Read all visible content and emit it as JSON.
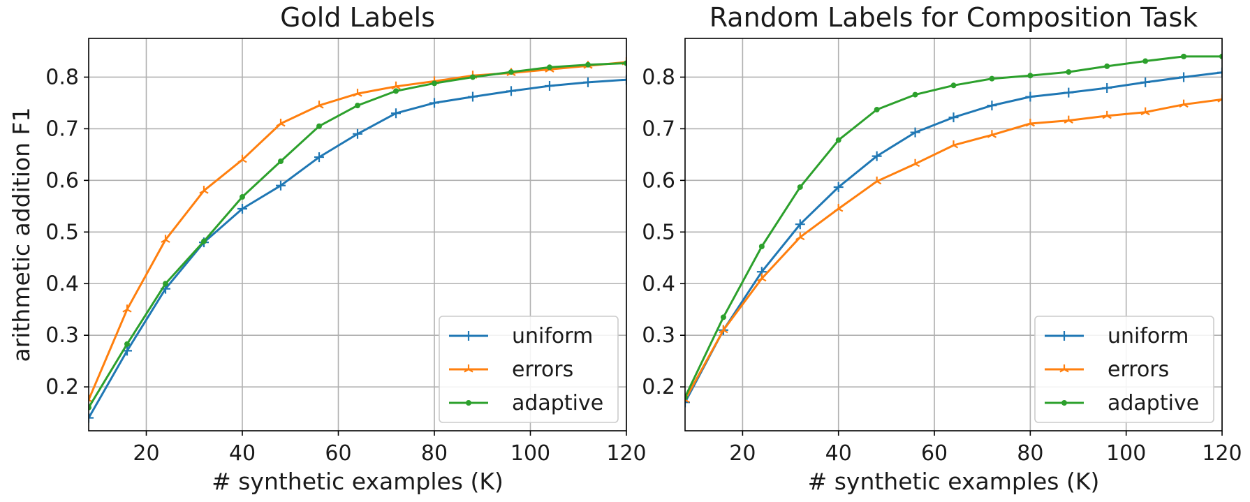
{
  "chart_data": [
    {
      "type": "line",
      "title": "Gold Labels",
      "xlabel": "# synthetic examples (K)",
      "ylabel": "arithmetic addition F1",
      "xlim": [
        8,
        120
      ],
      "ylim": [
        0.115,
        0.875
      ],
      "xticks": [
        20,
        40,
        60,
        80,
        100,
        120
      ],
      "yticks": [
        0.2,
        0.3,
        0.4,
        0.5,
        0.6,
        0.7,
        0.8
      ],
      "grid": true,
      "legend": "lower-right",
      "x": [
        8,
        16,
        24,
        32,
        40,
        48,
        56,
        64,
        72,
        80,
        88,
        96,
        104,
        112,
        120
      ],
      "series": [
        {
          "name": "uniform",
          "color": "#1f77b4",
          "marker": "plus",
          "values": [
            0.14,
            0.27,
            0.39,
            0.48,
            0.545,
            0.59,
            0.645,
            0.69,
            0.73,
            0.75,
            0.762,
            0.773,
            0.783,
            0.79,
            0.795
          ]
        },
        {
          "name": "errors",
          "color": "#ff7f0e",
          "marker": "tri",
          "values": [
            0.175,
            0.35,
            0.485,
            0.58,
            0.64,
            0.71,
            0.745,
            0.768,
            0.782,
            0.792,
            0.803,
            0.808,
            0.815,
            0.822,
            0.829
          ]
        },
        {
          "name": "adaptive",
          "color": "#2ca02c",
          "marker": "dot",
          "values": [
            0.16,
            0.283,
            0.4,
            0.482,
            0.568,
            0.637,
            0.705,
            0.745,
            0.773,
            0.788,
            0.8,
            0.81,
            0.819,
            0.824,
            0.827
          ]
        }
      ]
    },
    {
      "type": "line",
      "title": "Random Labels for Composition Task",
      "xlabel": "# synthetic examples (K)",
      "ylabel": "",
      "xlim": [
        8,
        120
      ],
      "ylim": [
        0.115,
        0.875
      ],
      "xticks": [
        20,
        40,
        60,
        80,
        100,
        120
      ],
      "yticks": [
        0.2,
        0.3,
        0.4,
        0.5,
        0.6,
        0.7,
        0.8
      ],
      "grid": true,
      "legend": "lower-right",
      "x": [
        8,
        16,
        24,
        32,
        40,
        48,
        56,
        64,
        72,
        80,
        88,
        96,
        104,
        112,
        120
      ],
      "series": [
        {
          "name": "uniform",
          "color": "#1f77b4",
          "marker": "plus",
          "values": [
            0.17,
            0.31,
            0.423,
            0.515,
            0.587,
            0.647,
            0.693,
            0.722,
            0.745,
            0.762,
            0.77,
            0.779,
            0.79,
            0.8,
            0.809
          ]
        },
        {
          "name": "errors",
          "color": "#ff7f0e",
          "marker": "tri",
          "values": [
            0.175,
            0.31,
            0.41,
            0.49,
            0.545,
            0.598,
            0.632,
            0.668,
            0.688,
            0.71,
            0.716,
            0.725,
            0.732,
            0.747,
            0.757
          ]
        },
        {
          "name": "adaptive",
          "color": "#2ca02c",
          "marker": "dot",
          "values": [
            0.18,
            0.335,
            0.472,
            0.587,
            0.678,
            0.737,
            0.766,
            0.784,
            0.797,
            0.803,
            0.81,
            0.821,
            0.831,
            0.84,
            0.84
          ]
        }
      ]
    }
  ]
}
